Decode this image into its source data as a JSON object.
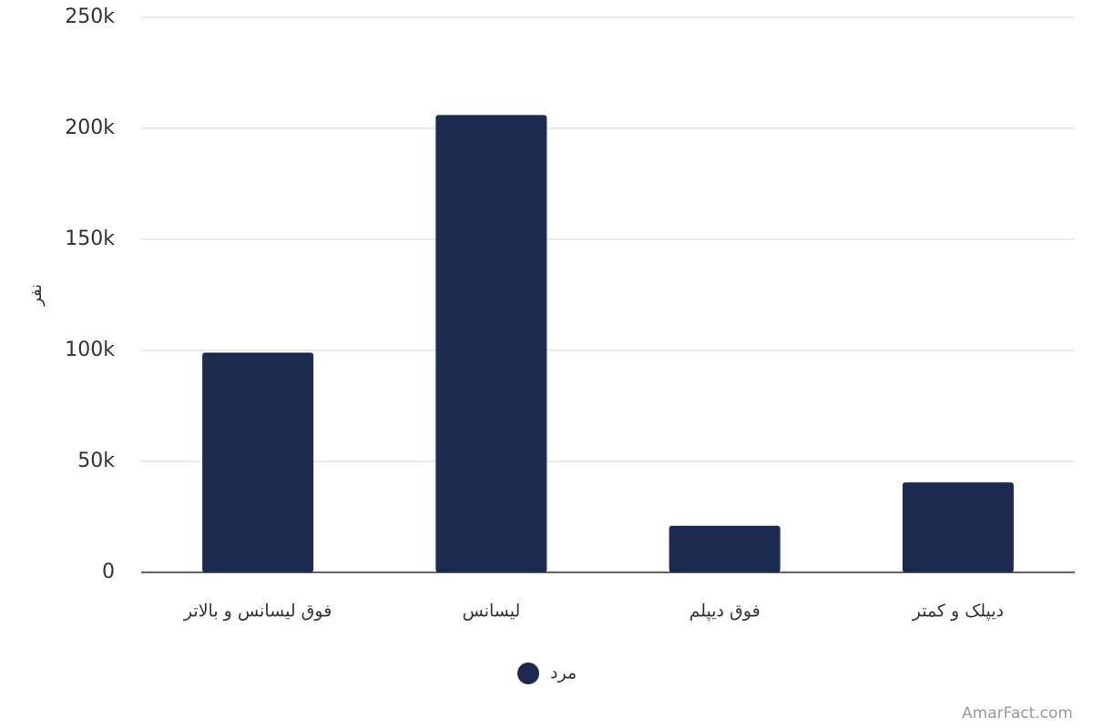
{
  "chart_data": {
    "type": "bar",
    "y_label": "نفر",
    "categories": [
      "فوق لیسانس و بالاتر",
      "لیسانس",
      "فوق دیپلم",
      "دیپلک و کمتر"
    ],
    "series": [
      {
        "name": "مرد",
        "color": "#1b2a4e",
        "values": [
          99000,
          206000,
          21000,
          40500
        ]
      }
    ],
    "ylim": [
      0,
      250000
    ],
    "yticks": [
      0,
      {
        "value": 50000,
        "label": "50k"
      },
      {
        "value": 100000,
        "label": "100k"
      },
      {
        "value": 150000,
        "label": "150k"
      },
      {
        "value": 200000,
        "label": "200k"
      },
      {
        "value": 250000,
        "label": "250k"
      }
    ],
    "grid": true,
    "legend": "bottom",
    "credit": "AmarFact.com"
  }
}
